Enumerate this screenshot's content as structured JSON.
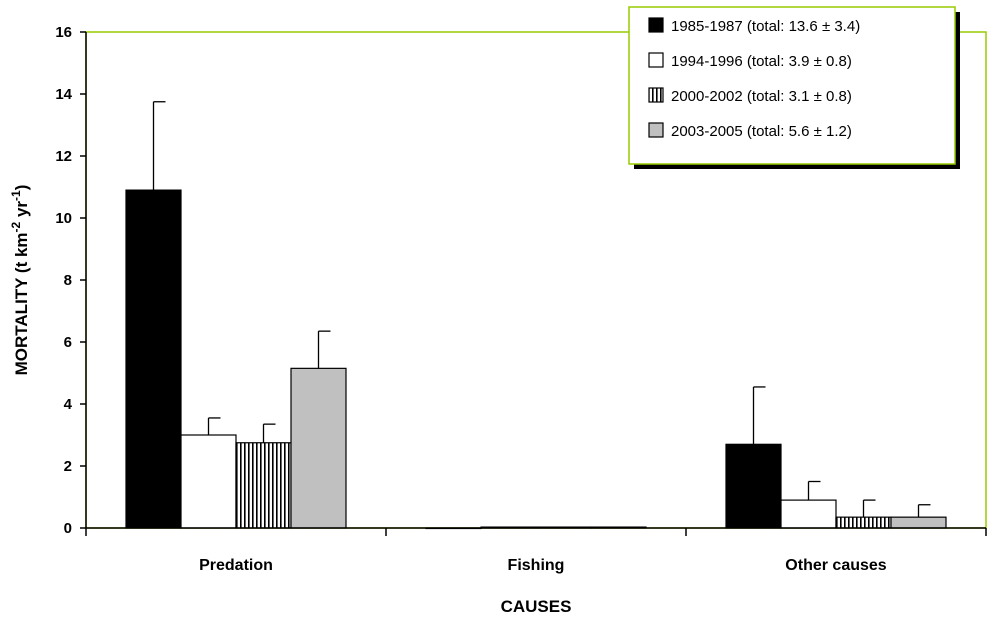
{
  "chart_data": {
    "type": "bar",
    "categories": [
      "Predation",
      "Fishing",
      "Other causes"
    ],
    "series": [
      {
        "name": "1985-1987 (total: 13.6 ± 3.4)",
        "values": [
          10.9,
          0.0,
          2.7
        ],
        "errors": [
          2.85,
          0,
          1.85
        ],
        "fill": "#000000"
      },
      {
        "name": "1994-1996 (total: 3.9 ± 0.8)",
        "values": [
          3.0,
          0.03,
          0.9
        ],
        "errors": [
          0.55,
          0,
          0.6
        ],
        "fill": "#ffffff"
      },
      {
        "name": "2000-2002 (total: 3.1 ± 0.8)",
        "values": [
          2.75,
          0.03,
          0.35
        ],
        "errors": [
          0.6,
          0,
          0.55
        ],
        "fill": "vertical-stripes"
      },
      {
        "name": "2003-2005 (total: 5.6 ± 1.2)",
        "values": [
          5.15,
          0.03,
          0.35
        ],
        "errors": [
          1.2,
          0,
          0.4
        ],
        "fill": "#c0c0c0"
      }
    ],
    "xlabel": "CAUSES",
    "ylabel_main": "MORTALITY  (t km",
    "ylabel_sup1": "-2",
    "ylabel_mid": " yr",
    "ylabel_sup2": "-1",
    "ylabel_end": ")",
    "ylim": [
      0,
      16
    ],
    "yticks": [
      0,
      2,
      4,
      6,
      8,
      10,
      12,
      14,
      16
    ],
    "legend_position": "top-right",
    "plot_border_color": "#99cc00"
  }
}
